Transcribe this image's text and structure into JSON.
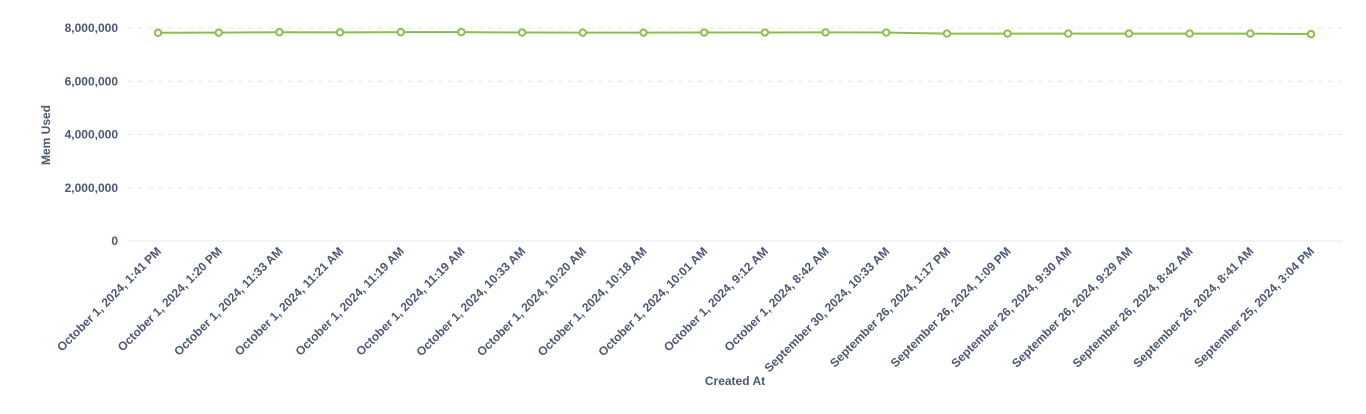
{
  "colors": {
    "series": "#88bf4d",
    "tick_text": "#4c5773",
    "grid": "#e6e8ec"
  },
  "chart_data": {
    "type": "line",
    "xlabel": "Created At",
    "ylabel": "Mem Used",
    "ylim": [
      0,
      8000000
    ],
    "y_ticks": [
      0,
      2000000,
      4000000,
      6000000,
      8000000
    ],
    "y_tick_labels": [
      "0",
      "2,000,000",
      "4,000,000",
      "6,000,000",
      "8,000,000"
    ],
    "grid": true,
    "legend": "none",
    "categories": [
      "October 1, 2024, 1:41 PM",
      "October 1, 2024, 1:20 PM",
      "October 1, 2024, 11:33 AM",
      "October 1, 2024, 11:21 AM",
      "October 1, 2024, 11:19 AM",
      "October 1, 2024, 11:19 AM",
      "October 1, 2024, 10:33 AM",
      "October 1, 2024, 10:20 AM",
      "October 1, 2024, 10:18 AM",
      "October 1, 2024, 10:01 AM",
      "October 1, 2024, 9:12 AM",
      "October 1, 2024, 8:42 AM",
      "September 30, 2024, 10:33 AM",
      "September 26, 2024, 1:17 PM",
      "September 26, 2024, 1:09 PM",
      "September 26, 2024, 9:30 AM",
      "September 26, 2024, 9:29 AM",
      "September 26, 2024, 8:42 AM",
      "September 26, 2024, 8:41 AM",
      "September 25, 2024, 3:04 PM"
    ],
    "series": [
      {
        "values": [
          7820000,
          7825000,
          7840000,
          7835000,
          7845000,
          7845000,
          7830000,
          7825000,
          7825000,
          7830000,
          7830000,
          7835000,
          7830000,
          7790000,
          7790000,
          7790000,
          7790000,
          7790000,
          7790000,
          7770000
        ]
      }
    ]
  }
}
